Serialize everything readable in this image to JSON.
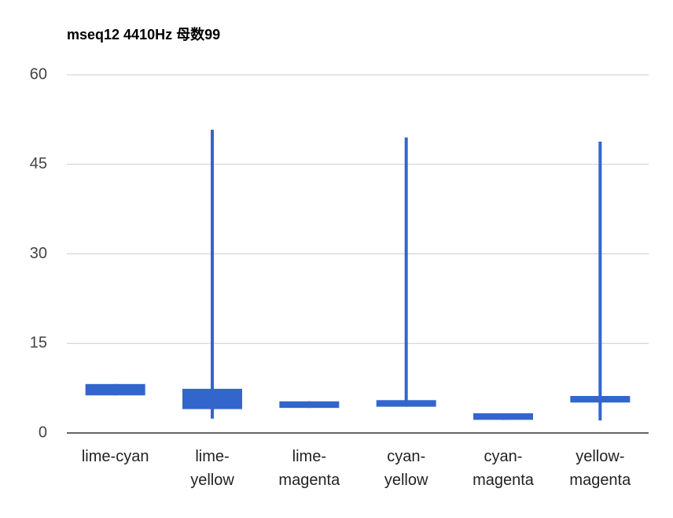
{
  "chart_data": {
    "type": "candlestick",
    "title": "mseq12 4410Hz 母数99",
    "categories": [
      "lime-cyan",
      "lime-yellow",
      "lime-magenta",
      "cyan-yellow",
      "cyan-magenta",
      "yellow-magenta"
    ],
    "low": [
      6.3,
      2.4,
      4.2,
      4.4,
      2.2,
      2.1
    ],
    "open": [
      6.3,
      4.0,
      4.2,
      4.4,
      2.2,
      5.1
    ],
    "close": [
      8.2,
      7.4,
      5.3,
      5.5,
      3.3,
      6.2
    ],
    "high": [
      8.2,
      50.8,
      5.3,
      49.5,
      3.3,
      48.8
    ],
    "color": "#3366cc",
    "ylim": [
      0,
      60
    ],
    "yticks": [
      0,
      15,
      30,
      45,
      60
    ],
    "grid": true
  }
}
